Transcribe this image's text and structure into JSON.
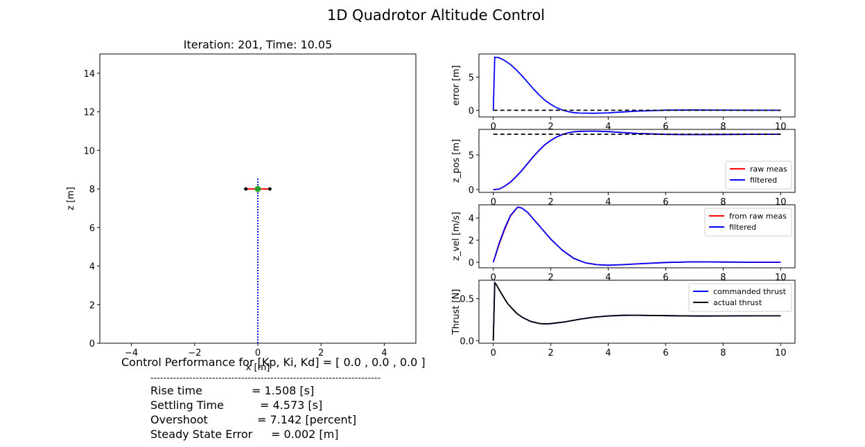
{
  "figure": {
    "title": "1D Quadrotor Altitude Control"
  },
  "chart_data": [
    {
      "id": "xz-view",
      "type": "scatter",
      "title": "Iteration: 201, Time: 10.05",
      "xlabel": "x [m]",
      "ylabel": "z [m]",
      "xlim": [
        -5,
        5
      ],
      "ylim": [
        0,
        15
      ],
      "xticks": [
        -4,
        -2,
        0,
        2,
        4
      ],
      "xtick_labels": [
        "−4",
        "−2",
        "0",
        "2",
        "4"
      ],
      "yticks": [
        0,
        2,
        4,
        6,
        8,
        10,
        12,
        14
      ],
      "ytick_labels": [
        "0",
        "2",
        "4",
        "6",
        "8",
        "10",
        "12",
        "14"
      ],
      "grid": false,
      "quadrotor": {
        "x": 0,
        "z": 8.0,
        "arm_half_width": 0.38,
        "body_color": "#2ca02c",
        "arm_color": "#ff0000",
        "rotor_color": "#000000"
      },
      "vertical_line": {
        "x": 0,
        "z_from": 0,
        "z_to": 8.6,
        "style": "dotted",
        "color": "#0000ff"
      }
    },
    {
      "id": "error",
      "type": "line",
      "ylabel": "error [m]",
      "xlim": [
        -0.5,
        10.5
      ],
      "ylim": [
        -1.0,
        8.5
      ],
      "xticks": [
        0,
        2,
        4,
        6,
        8,
        10
      ],
      "yticks": [
        0,
        5
      ],
      "series": [
        {
          "color": "#0000ff",
          "style": "solid",
          "x": [
            0,
            0.05,
            0.1,
            0.2,
            0.4,
            0.6,
            0.8,
            1.0,
            1.2,
            1.4,
            1.6,
            1.8,
            2.0,
            2.2,
            2.4,
            2.6,
            2.8,
            3.0,
            3.5,
            4.0,
            4.5,
            5.0,
            6.0,
            7.0,
            8.0,
            9.0,
            10.0
          ],
          "y": [
            0.0,
            8.0,
            7.99,
            7.94,
            7.5,
            6.9,
            6.1,
            5.2,
            4.2,
            3.2,
            2.3,
            1.5,
            0.9,
            0.4,
            0.05,
            -0.2,
            -0.35,
            -0.42,
            -0.45,
            -0.38,
            -0.25,
            -0.12,
            0.02,
            0.05,
            0.03,
            0.01,
            0.0
          ]
        },
        {
          "color": "#000000",
          "style": "dashed",
          "x": [
            0,
            10
          ],
          "y": [
            0,
            0
          ]
        }
      ]
    },
    {
      "id": "z_pos",
      "type": "line",
      "ylabel": "z_pos [m]",
      "xlim": [
        -0.5,
        10.5
      ],
      "ylim": [
        -0.4,
        8.7
      ],
      "xticks": [
        0,
        2,
        4,
        6,
        8,
        10
      ],
      "yticks": [
        0,
        5
      ],
      "legend": {
        "placement": "lower-right",
        "entries": [
          "raw meas",
          "filtered"
        ]
      },
      "series": [
        {
          "name": "raw meas",
          "color": "#ff0000",
          "style": "solid",
          "x": [
            0,
            0.2,
            0.4,
            0.6,
            0.8,
            1.0,
            1.2,
            1.4,
            1.6,
            1.8,
            2.0,
            2.2,
            2.4,
            2.6,
            2.8,
            3.0,
            3.5,
            4.0,
            4.5,
            5.0,
            6.0,
            7.0,
            8.0,
            9.0,
            10.0
          ],
          "y": [
            0.0,
            0.06,
            0.5,
            1.1,
            1.9,
            2.8,
            3.8,
            4.8,
            5.7,
            6.5,
            7.1,
            7.6,
            7.95,
            8.2,
            8.35,
            8.42,
            8.45,
            8.38,
            8.25,
            8.12,
            7.98,
            7.95,
            7.97,
            7.99,
            8.0
          ]
        },
        {
          "name": "filtered",
          "color": "#0000ff",
          "style": "solid",
          "x": [
            0,
            0.2,
            0.4,
            0.6,
            0.8,
            1.0,
            1.2,
            1.4,
            1.6,
            1.8,
            2.0,
            2.2,
            2.4,
            2.6,
            2.8,
            3.0,
            3.5,
            4.0,
            4.5,
            5.0,
            6.0,
            7.0,
            8.0,
            9.0,
            10.0
          ],
          "y": [
            0.0,
            0.06,
            0.5,
            1.1,
            1.9,
            2.8,
            3.8,
            4.8,
            5.7,
            6.5,
            7.1,
            7.6,
            7.95,
            8.2,
            8.35,
            8.42,
            8.45,
            8.38,
            8.25,
            8.12,
            7.98,
            7.95,
            7.97,
            7.99,
            8.0
          ]
        },
        {
          "color": "#000000",
          "style": "dashed",
          "x": [
            0,
            10
          ],
          "y": [
            8,
            8
          ]
        }
      ]
    },
    {
      "id": "z_vel",
      "type": "line",
      "ylabel": "z_vel [m/s]",
      "xlim": [
        -0.5,
        10.5
      ],
      "ylim": [
        -0.5,
        5.2
      ],
      "xticks": [
        0,
        2,
        4,
        6,
        8,
        10
      ],
      "yticks": [
        0,
        2,
        4
      ],
      "legend": {
        "placement": "top-right",
        "entries": [
          "from raw meas",
          "filtered"
        ]
      },
      "series": [
        {
          "name": "from raw meas",
          "color": "#ff0000",
          "style": "solid",
          "x": [
            0,
            0.1,
            0.2,
            0.4,
            0.6,
            0.85,
            1.0,
            1.2,
            1.4,
            1.6,
            1.8,
            2.0,
            2.4,
            2.8,
            3.2,
            3.6,
            4.0,
            4.5,
            5.0,
            6.0,
            7.0,
            8.0,
            9.0,
            10.0
          ],
          "y": [
            0.0,
            0.8,
            1.6,
            3.0,
            4.2,
            5.0,
            4.9,
            4.5,
            3.9,
            3.3,
            2.7,
            2.1,
            1.1,
            0.35,
            -0.05,
            -0.22,
            -0.27,
            -0.22,
            -0.15,
            -0.02,
            0.04,
            0.02,
            0.0,
            0.0
          ]
        },
        {
          "name": "filtered",
          "color": "#0000ff",
          "style": "solid",
          "x": [
            0,
            0.1,
            0.2,
            0.4,
            0.6,
            0.85,
            1.0,
            1.2,
            1.4,
            1.6,
            1.8,
            2.0,
            2.4,
            2.8,
            3.2,
            3.6,
            4.0,
            4.5,
            5.0,
            6.0,
            7.0,
            8.0,
            9.0,
            10.0
          ],
          "y": [
            0.0,
            0.85,
            1.7,
            3.1,
            4.25,
            5.0,
            4.9,
            4.5,
            3.9,
            3.3,
            2.7,
            2.1,
            1.1,
            0.35,
            -0.05,
            -0.22,
            -0.27,
            -0.22,
            -0.15,
            -0.02,
            0.04,
            0.02,
            0.0,
            0.0
          ]
        }
      ]
    },
    {
      "id": "thrust",
      "type": "line",
      "ylabel": "Thrust [N]",
      "xlim": [
        -0.5,
        10.5
      ],
      "ylim": [
        -0.03,
        0.72
      ],
      "xticks": [
        0,
        2,
        4,
        6,
        8,
        10
      ],
      "yticks": [
        0,
        0.5
      ],
      "ytick_labels": [
        "0.0",
        "0.5"
      ],
      "legend": {
        "placement": "top-right",
        "entries": [
          "commanded thrust",
          "actual thrust"
        ]
      },
      "series": [
        {
          "name": "commanded thrust",
          "color": "#0000ff",
          "style": "solid",
          "x": [
            0,
            0.05,
            0.1,
            0.3,
            0.5,
            0.8,
            1.0,
            1.3,
            1.6,
            1.8,
            2.0,
            2.5,
            3.0,
            3.5,
            4.0,
            4.5,
            5.0,
            6.0,
            7.0,
            8.0,
            9.0,
            10.0
          ],
          "y": [
            0.0,
            0.69,
            0.67,
            0.55,
            0.44,
            0.33,
            0.28,
            0.23,
            0.205,
            0.2,
            0.203,
            0.225,
            0.255,
            0.28,
            0.295,
            0.302,
            0.303,
            0.298,
            0.294,
            0.295,
            0.296,
            0.296
          ]
        },
        {
          "name": "actual thrust",
          "color": "#000000",
          "style": "solid",
          "x": [
            0,
            0.05,
            0.1,
            0.3,
            0.5,
            0.8,
            1.0,
            1.3,
            1.6,
            1.8,
            2.0,
            2.5,
            3.0,
            3.5,
            4.0,
            4.5,
            5.0,
            6.0,
            7.0,
            8.0,
            9.0,
            10.0
          ],
          "y": [
            0.0,
            0.69,
            0.67,
            0.55,
            0.44,
            0.33,
            0.28,
            0.23,
            0.205,
            0.2,
            0.203,
            0.225,
            0.255,
            0.28,
            0.295,
            0.302,
            0.303,
            0.298,
            0.294,
            0.295,
            0.296,
            0.296
          ]
        }
      ]
    }
  ],
  "performance": {
    "header": "Control Performance for [Kp, Ki, Kd] = [ 0.0 , 0.0 , 0.0 ]",
    "divider": "-----------------------------------------------------------------------",
    "rise_label": "Rise time",
    "rise_value": "= 1.508 [s]",
    "settling_label": "Settling Time",
    "settling_value": "= 4.573 [s]",
    "overshoot_label": "Overshoot",
    "overshoot_value": "= 7.142 [percent]",
    "sse_label": "Steady State Error",
    "sse_value": "= 0.002 [m]"
  }
}
